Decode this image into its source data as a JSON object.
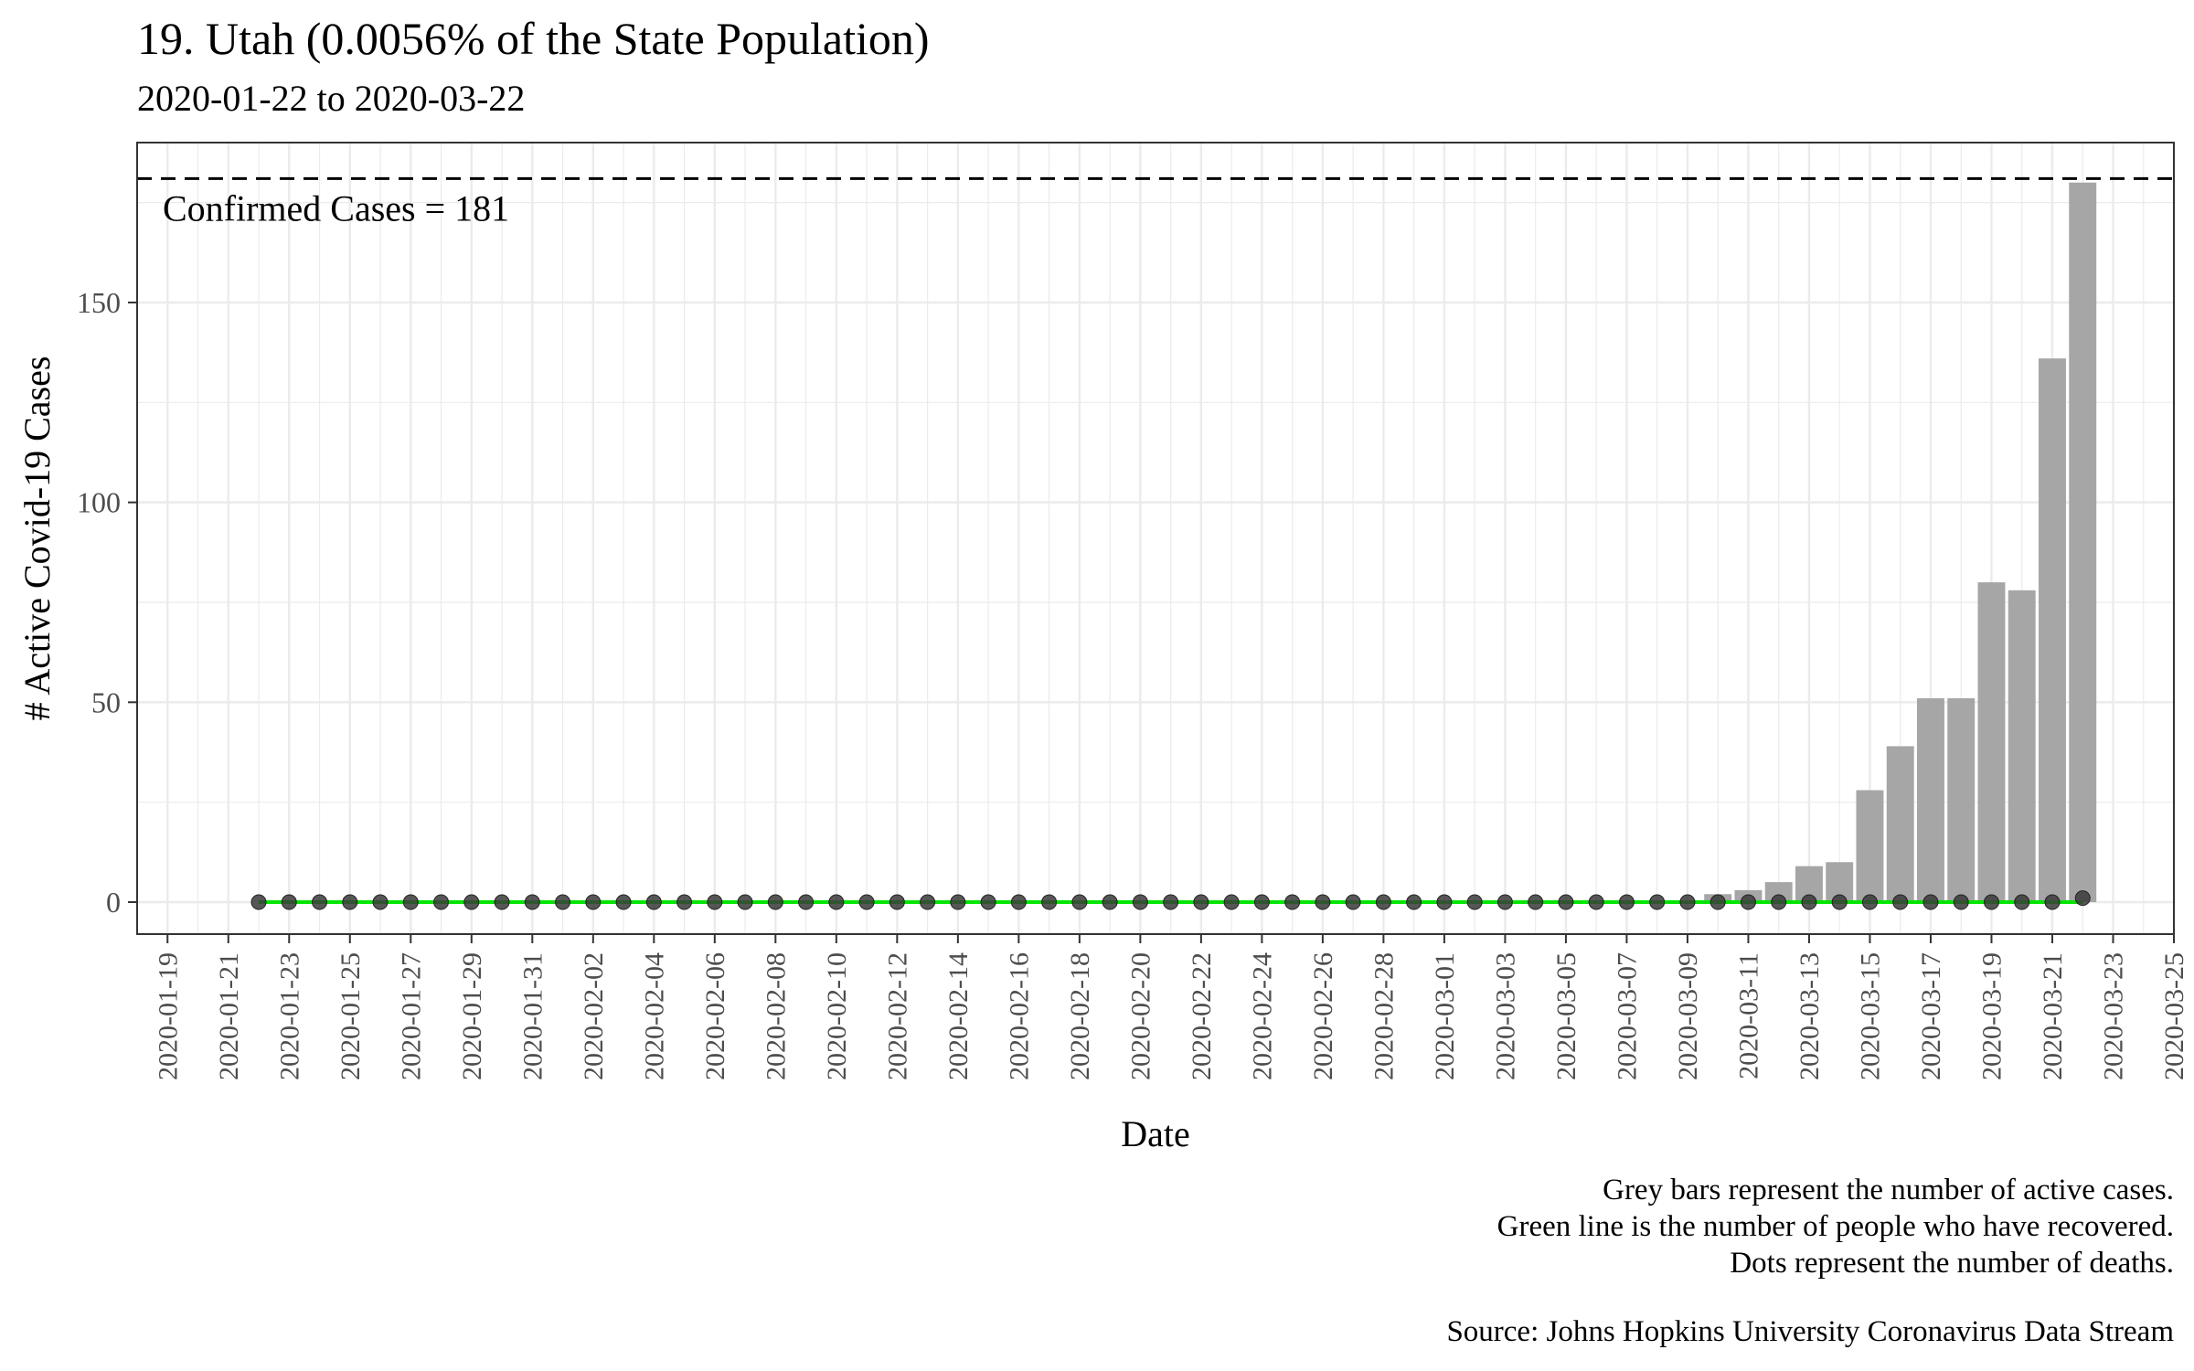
{
  "title": "19. Utah (0.0056% of the State Population)",
  "subtitle": "2020-01-22 to 2020-03-22",
  "captions": [
    "Grey bars represent the number of active cases.",
    "Green line is the number of people who have recovered.",
    "Dots represent the number of deaths.",
    "Source: Johns Hopkins University Coronavirus Data Stream"
  ],
  "chart_data": {
    "type": "bar",
    "xlabel": "Date",
    "ylabel": "# Active Covid-19 Cases",
    "start_date": "2020-01-22",
    "end_date": "2020-03-22",
    "x_tick_labels": [
      "2020-01-19",
      "2020-01-21",
      "2020-01-23",
      "2020-01-25",
      "2020-01-27",
      "2020-01-29",
      "2020-01-31",
      "2020-02-02",
      "2020-02-04",
      "2020-02-06",
      "2020-02-08",
      "2020-02-10",
      "2020-02-12",
      "2020-02-14",
      "2020-02-16",
      "2020-02-18",
      "2020-02-20",
      "2020-02-22",
      "2020-02-24",
      "2020-02-26",
      "2020-02-28",
      "2020-03-01",
      "2020-03-03",
      "2020-03-05",
      "2020-03-07",
      "2020-03-09",
      "2020-03-11",
      "2020-03-13",
      "2020-03-15",
      "2020-03-17",
      "2020-03-19",
      "2020-03-21",
      "2020-03-23",
      "2020-03-25"
    ],
    "xlim": [
      "2020-01-18",
      "2020-03-25"
    ],
    "y_ticks": [
      0,
      50,
      100,
      150
    ],
    "ylim": [
      -8,
      190
    ],
    "active_cases": [
      0,
      0,
      0,
      0,
      0,
      0,
      0,
      0,
      0,
      0,
      0,
      0,
      0,
      0,
      0,
      0,
      0,
      0,
      0,
      0,
      0,
      0,
      0,
      0,
      0,
      0,
      0,
      0,
      0,
      0,
      0,
      0,
      0,
      0,
      0,
      0,
      0,
      0,
      0,
      0,
      0,
      0,
      0,
      0,
      0,
      0,
      0,
      0,
      2,
      3,
      5,
      9,
      10,
      28,
      39,
      51,
      51,
      80,
      78,
      136,
      180
    ],
    "recovered": [
      0,
      0,
      0,
      0,
      0,
      0,
      0,
      0,
      0,
      0,
      0,
      0,
      0,
      0,
      0,
      0,
      0,
      0,
      0,
      0,
      0,
      0,
      0,
      0,
      0,
      0,
      0,
      0,
      0,
      0,
      0,
      0,
      0,
      0,
      0,
      0,
      0,
      0,
      0,
      0,
      0,
      0,
      0,
      0,
      0,
      0,
      0,
      0,
      0,
      0,
      0,
      0,
      0,
      0,
      0,
      0,
      0,
      0,
      0,
      0,
      0
    ],
    "deaths": [
      0,
      0,
      0,
      0,
      0,
      0,
      0,
      0,
      0,
      0,
      0,
      0,
      0,
      0,
      0,
      0,
      0,
      0,
      0,
      0,
      0,
      0,
      0,
      0,
      0,
      0,
      0,
      0,
      0,
      0,
      0,
      0,
      0,
      0,
      0,
      0,
      0,
      0,
      0,
      0,
      0,
      0,
      0,
      0,
      0,
      0,
      0,
      0,
      0,
      0,
      0,
      0,
      0,
      0,
      0,
      0,
      0,
      0,
      0,
      0,
      1
    ],
    "confirmed_line": 181,
    "confirmed_label": "Confirmed Cases = 181",
    "grid": true,
    "colors": {
      "bars": "#a6a6a6",
      "recovered_line": "#00e600",
      "death_dots": "#3a3a3a",
      "grid": "#ebebeb",
      "confirmed_line": "#000000"
    }
  }
}
